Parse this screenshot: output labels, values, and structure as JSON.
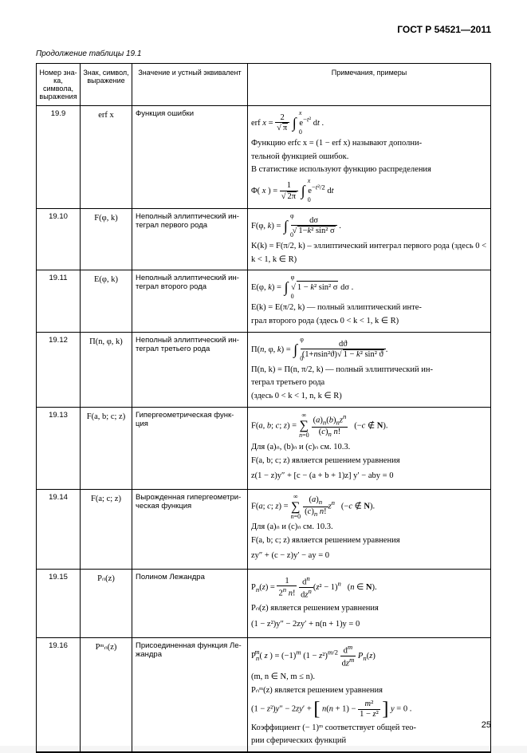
{
  "header": {
    "doc_code": "ГОСТ Р 54521—2011"
  },
  "caption": "Продолжение таблицы 19.1",
  "columns": {
    "c1": "Номер зна-\nка, символа,\nвыражения",
    "c2": "Знак, символ,\nвыражение",
    "c3": "Значение и устный эквивалент",
    "c4": "Примечания, примеры"
  },
  "rows": {
    "r1": {
      "num": "19.9",
      "sym": "erf x",
      "meaning": "Функция ошибки",
      "note1": "Функцию erfc x = (1 − erf x) называют дополни-\nтельной функцией ошибок.",
      "note2": "В статистике используют функцию распределения"
    },
    "r2": {
      "num": "19.10",
      "sym": "F(φ, k)",
      "meaning": "Неполный эллиптический ин-\nтеграл первого рода",
      "note1": "K(k) = F(π/2, k) – эллиптический интеграл первого рода (здесь 0 < k < 1, k ∈ R)"
    },
    "r3": {
      "num": "19.11",
      "sym": "E(φ, k)",
      "meaning": "Неполный эллиптический ин-\nтеграл второго рода",
      "note1": "E(k) = E(π/2, k) — полный эллиптический инте-\nграл второго рода (здесь 0 < k < 1, k ∈ R)"
    },
    "r4": {
      "num": "19.12",
      "sym": "П(n, φ, k)",
      "meaning": "Неполный эллиптический ин-\nтеграл третьего рода",
      "note1": "П(n, k) = П(n, π/2, k) — полный эллиптический ин-\nтеграл третьего рода",
      "note2": "(здесь 0 < k < 1, n, k ∈ R)"
    },
    "r5": {
      "num": "19.13",
      "sym": "F(a, b; c; z)",
      "meaning": "Гипергеометрическая    функ-\nция",
      "note2": "Для (a)ₙ, (b)ₙ и (c)ₙ см. 10.3.",
      "note3": "F(a, b; c; z) является решением уравнения",
      "note4": "z(1 − z)y″ + [c − (a + b + 1)z] y′ − aby = 0"
    },
    "r6": {
      "num": "19.14",
      "sym": "F(a; c; z)",
      "meaning": "Вырожденная гипергеометри-\nческая функция",
      "note2": "Для (a)ₙ и (c)ₙ см. 10.3.",
      "note3": "F(a, b; c; z) является решением уравнения",
      "note4": "zy″ + (c − z)y′ − ay = 0"
    },
    "r7": {
      "num": "19.15",
      "sym": "Pₙ(z)",
      "meaning": "Полином Лежандра",
      "note2": "Pₙ(z) является решением уравнения",
      "note3": "(1 − z²)y″ − 2zy′ + n(n + 1)y  =  0"
    },
    "r8": {
      "num": "19.16",
      "sym": "Pᵐₙ(z)",
      "meaning": "Присоединенная функция Ле-\nжандра",
      "note2": "(m, n ∈ N, m ≤ n).",
      "note3": "Pₙᵐ(z) является решением уравнения",
      "note5": "Коэффициент (− 1)ᵐ соответствует общей тео-\nрии сферических функций"
    }
  },
  "page_number": "25"
}
